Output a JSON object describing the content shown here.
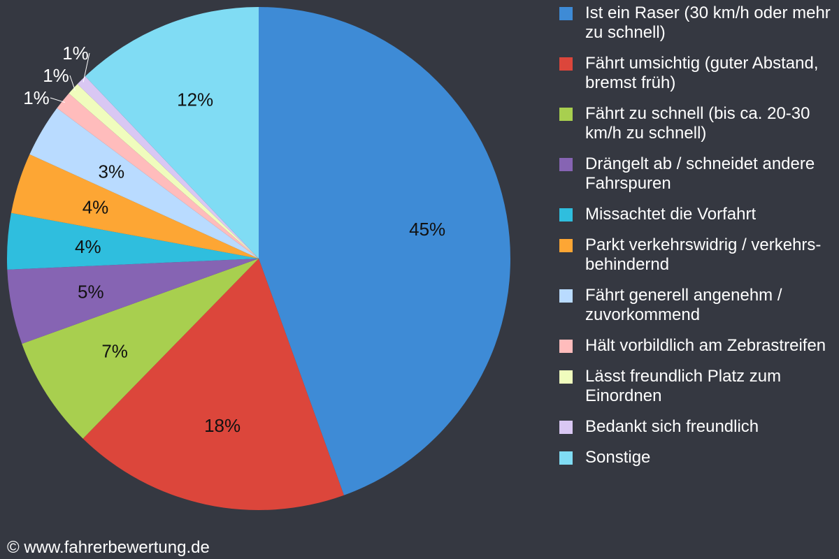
{
  "chart_data": {
    "type": "pie",
    "start": "top",
    "direction": "clockwise",
    "legend_position": "right",
    "series": [
      {
        "name": "Ist ein Raser (30 km/h oder mehr zu schnell)",
        "value": 44.5,
        "label": "45%",
        "color": "#3e8bd6"
      },
      {
        "name": "Fährt umsichtig (guter Abstand, bremst früh)",
        "value": 17.8,
        "label": "18%",
        "color": "#dc463b"
      },
      {
        "name": "Fährt zu schnell (bis ca. 20-30 km/h zu schnell)",
        "value": 7.2,
        "label": "7%",
        "color": "#a8cf4f"
      },
      {
        "name": "Drängelt ab / schneidet andere Fahrspuren",
        "value": 4.8,
        "label": "5%",
        "color": "#8664b3"
      },
      {
        "name": "Missachtet die Vorfahrt",
        "value": 3.6,
        "label": "4%",
        "color": "#2fbede"
      },
      {
        "name": "Parkt verkehrswidrig / verkehrs-behindernd",
        "value": 3.9,
        "label": "4%",
        "color": "#fda634"
      },
      {
        "name": "Fährt generell angenehm / zuvorkommend",
        "value": 3.4,
        "label": "3%",
        "color": "#b9dbff"
      },
      {
        "name": "Hält vorbildlich am Zebrastreifen",
        "value": 1.2,
        "label": "1%",
        "color": "#ffbcbc"
      },
      {
        "name": "Lässt freundlich Platz zum Einordnen",
        "value": 0.8,
        "label": "1%",
        "color": "#f0fcbd"
      },
      {
        "name": "Bedankt sich freundlich",
        "value": 0.7,
        "label": "1%",
        "color": "#d9c7f3"
      },
      {
        "name": "Sonstige",
        "value": 12.1,
        "label": "12%",
        "color": "#80dcf4"
      }
    ]
  },
  "credit": "© www.fahrerbewertung.de"
}
